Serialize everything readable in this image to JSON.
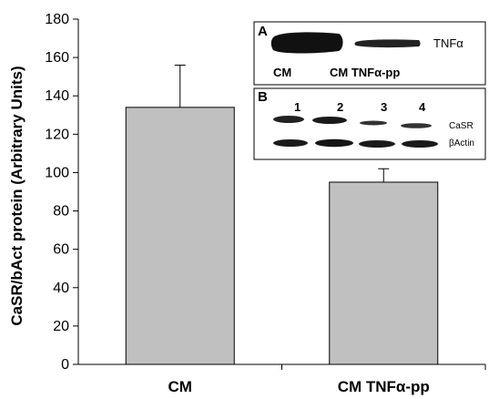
{
  "chart_data": {
    "type": "bar",
    "categories": [
      "CM",
      "CM  TNFα-pp"
    ],
    "values": [
      134,
      95
    ],
    "errors": [
      22,
      7
    ],
    "title": "",
    "xlabel": "",
    "ylabel": "CaSR/bAct protein (Arbitrary Units)",
    "ylim": [
      0,
      180
    ],
    "yticks": [
      "0",
      "20",
      "40",
      "60",
      "80",
      "100",
      "120",
      "140",
      "160",
      "180"
    ],
    "grid": false,
    "bar_color": "#c0c0c0"
  },
  "insets": {
    "panel_a": {
      "letter": "A",
      "band_label": "TNFα",
      "lane_labels": [
        "CM",
        "CM TNFα-pp"
      ]
    },
    "panel_b": {
      "letter": "B",
      "lane_numbers": [
        "1",
        "2",
        "3",
        "4"
      ],
      "band_labels": [
        "CaSR",
        "βActin"
      ]
    }
  }
}
